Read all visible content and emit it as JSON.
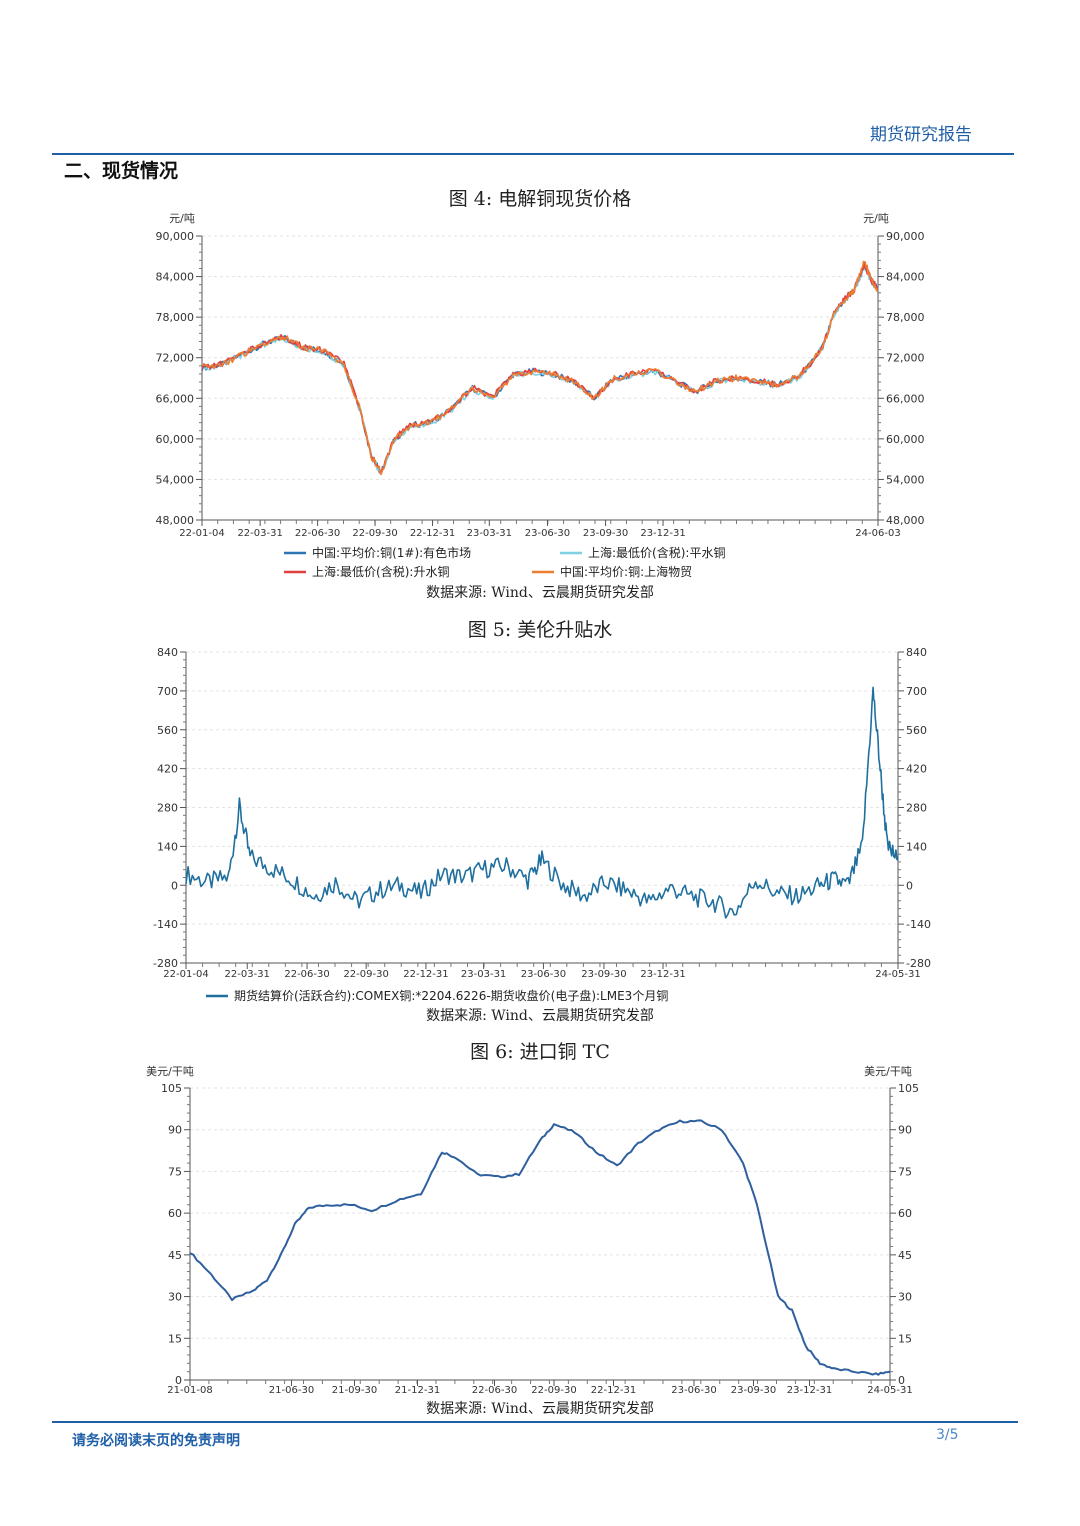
{
  "header": {
    "report_type": "期货研究报告"
  },
  "section_title": "二、现货情况",
  "figures": [
    {
      "title": "图 4:  电解铜现货价格",
      "source": "数据来源:  Wind、云晨期货研究发部"
    },
    {
      "title": "图 5:  美伦升贴水",
      "source": "数据来源:  Wind、云晨期货研究发部"
    },
    {
      "title": "图 6:  进口铜 TC",
      "source": "数据来源:  Wind、云晨期货研究发部"
    }
  ],
  "footer": {
    "disclaimer": "请务必阅读末页的免责声明",
    "page": "3/5"
  },
  "chart_data": [
    {
      "type": "line",
      "title": "图 4: 电解铜现货价格",
      "unit_left": "元/吨",
      "unit_right": "元/吨",
      "ylim": [
        48000,
        90000
      ],
      "y_ticks": [
        48000,
        54000,
        60000,
        66000,
        72000,
        78000,
        84000,
        90000
      ],
      "y_tick_labels": [
        "48,000",
        "54,000",
        "60,000",
        "66,000",
        "72,000",
        "78,000",
        "84,000",
        "90,000"
      ],
      "x_tick_labels": [
        "22-01-04",
        "22-03-31",
        "22-06-30",
        "22-09-30",
        "22-12-31",
        "23-03-31",
        "23-06-30",
        "23-09-30",
        "23-12-31",
        "24-06-03"
      ],
      "x": [
        0,
        0.03,
        0.06,
        0.09,
        0.12,
        0.15,
        0.18,
        0.21,
        0.235,
        0.25,
        0.265,
        0.285,
        0.31,
        0.34,
        0.37,
        0.4,
        0.43,
        0.46,
        0.49,
        0.52,
        0.55,
        0.58,
        0.61,
        0.64,
        0.67,
        0.7,
        0.73,
        0.76,
        0.79,
        0.82,
        0.85,
        0.88,
        0.9,
        0.92,
        0.935,
        0.95,
        0.965,
        0.98,
        0.99,
        1.0
      ],
      "series": [
        {
          "name": "中国:平均价:铜(1#):有色市场",
          "color": "#2e75b6",
          "values": [
            70500,
            71000,
            72500,
            74000,
            75000,
            73500,
            73000,
            71000,
            64000,
            57500,
            55000,
            60000,
            62000,
            62500,
            64500,
            67500,
            66000,
            69500,
            70000,
            69500,
            68500,
            66000,
            69000,
            69500,
            70000,
            68500,
            67000,
            68500,
            69000,
            68500,
            68000,
            69000,
            71000,
            74000,
            78500,
            80500,
            82000,
            85500,
            83500,
            82000
          ]
        },
        {
          "name": "上海:最低价(含税):平水铜",
          "color": "#7fd0e0",
          "values": [
            70400,
            70900,
            72400,
            73900,
            74900,
            73400,
            72900,
            70900,
            63900,
            57400,
            54900,
            59900,
            61900,
            62400,
            64400,
            67400,
            65900,
            69400,
            69900,
            69400,
            68400,
            65900,
            68900,
            69400,
            69900,
            68400,
            66900,
            68400,
            68900,
            68400,
            67900,
            68900,
            70900,
            73900,
            78400,
            80400,
            81900,
            85400,
            83400,
            81900
          ]
        },
        {
          "name": "上海:最低价(含税):升水铜",
          "color": "#e04040",
          "values": [
            70600,
            71100,
            72600,
            74100,
            75100,
            73600,
            73100,
            71100,
            64100,
            57600,
            55100,
            60100,
            62100,
            62600,
            64600,
            67600,
            66100,
            69600,
            70100,
            69600,
            68600,
            66100,
            69100,
            69600,
            70100,
            68600,
            67100,
            68600,
            69100,
            68600,
            68100,
            69100,
            71100,
            74100,
            78600,
            80600,
            82100,
            85600,
            83600,
            82100
          ]
        },
        {
          "name": "中国:平均价:铜:上海物贸",
          "color": "#ed7d31",
          "values": [
            70500,
            71000,
            72500,
            74000,
            75000,
            73500,
            73000,
            71000,
            64000,
            57500,
            55000,
            60000,
            62000,
            62500,
            64500,
            67500,
            66000,
            69500,
            70000,
            69500,
            68500,
            66000,
            69000,
            69500,
            70000,
            68500,
            67000,
            68500,
            69000,
            68500,
            68000,
            69000,
            71000,
            74000,
            78500,
            80500,
            82000,
            86500,
            83500,
            82000
          ]
        }
      ]
    },
    {
      "type": "line",
      "title": "图 5: 美伦升贴水",
      "ylim": [
        -280,
        840
      ],
      "y_ticks": [
        -280,
        -140,
        0,
        140,
        280,
        420,
        560,
        700,
        840
      ],
      "y_tick_labels": [
        "-280",
        "-140",
        "0",
        "140",
        "280",
        "420",
        "560",
        "700",
        "840"
      ],
      "x_tick_labels": [
        "22-01-04",
        "22-03-31",
        "22-06-30",
        "22-09-30",
        "22-12-31",
        "23-03-31",
        "23-06-30",
        "23-09-30",
        "23-12-31",
        "24-05-31"
      ],
      "x": [
        0,
        0.03,
        0.06,
        0.075,
        0.09,
        0.12,
        0.15,
        0.18,
        0.21,
        0.24,
        0.27,
        0.3,
        0.33,
        0.36,
        0.39,
        0.42,
        0.45,
        0.48,
        0.5,
        0.53,
        0.56,
        0.59,
        0.62,
        0.65,
        0.68,
        0.71,
        0.74,
        0.77,
        0.8,
        0.83,
        0.86,
        0.89,
        0.91,
        0.93,
        0.95,
        0.965,
        0.975,
        0.985,
        1.0
      ],
      "series": [
        {
          "name": "期货结算价(活跃合约):COMEX铜:*2204.6226-期货收盘价(电子盘):LME3个月铜",
          "color": "#1f6f9f",
          "values": [
            40,
            10,
            30,
            280,
            100,
            60,
            20,
            -40,
            10,
            -60,
            -20,
            0,
            -30,
            40,
            30,
            60,
            70,
            20,
            90,
            0,
            -40,
            10,
            -20,
            -60,
            -10,
            -40,
            -60,
            -100,
            20,
            -30,
            -40,
            0,
            20,
            0,
            140,
            700,
            420,
            140,
            90
          ]
        }
      ]
    },
    {
      "type": "line",
      "title": "图 6: 进口铜 TC",
      "unit_left": "美元/干吨",
      "unit_right": "美元/干吨",
      "ylim": [
        0,
        105
      ],
      "y_ticks": [
        0,
        15,
        30,
        45,
        60,
        75,
        90,
        105
      ],
      "y_tick_labels": [
        "0",
        "15",
        "30",
        "45",
        "60",
        "75",
        "90",
        "105"
      ],
      "x_tick_labels": [
        "21-01-08",
        "21-06-30",
        "21-09-30",
        "21-12-31",
        "22-06-30",
        "22-09-30",
        "22-12-31",
        "23-06-30",
        "23-09-30",
        "23-12-31",
        "24-05-31"
      ],
      "x": [
        0,
        0.03,
        0.06,
        0.09,
        0.11,
        0.13,
        0.15,
        0.17,
        0.2,
        0.23,
        0.26,
        0.3,
        0.33,
        0.36,
        0.38,
        0.41,
        0.44,
        0.47,
        0.5,
        0.52,
        0.55,
        0.58,
        0.61,
        0.64,
        0.67,
        0.7,
        0.73,
        0.76,
        0.79,
        0.81,
        0.84,
        0.86,
        0.88,
        0.9,
        0.92,
        0.95,
        0.98,
        1.0
      ],
      "series": [
        {
          "name": "进口铜 TC",
          "color": "#2e5f9e",
          "values": [
            46,
            38,
            29,
            32,
            36,
            45,
            56,
            62,
            63,
            63,
            61,
            65,
            67,
            82,
            80,
            74,
            73,
            74,
            86,
            92,
            89,
            82,
            77,
            85,
            90,
            93,
            93,
            90,
            78,
            63,
            30,
            25,
            12,
            6,
            4,
            3,
            2,
            3
          ]
        }
      ]
    }
  ]
}
